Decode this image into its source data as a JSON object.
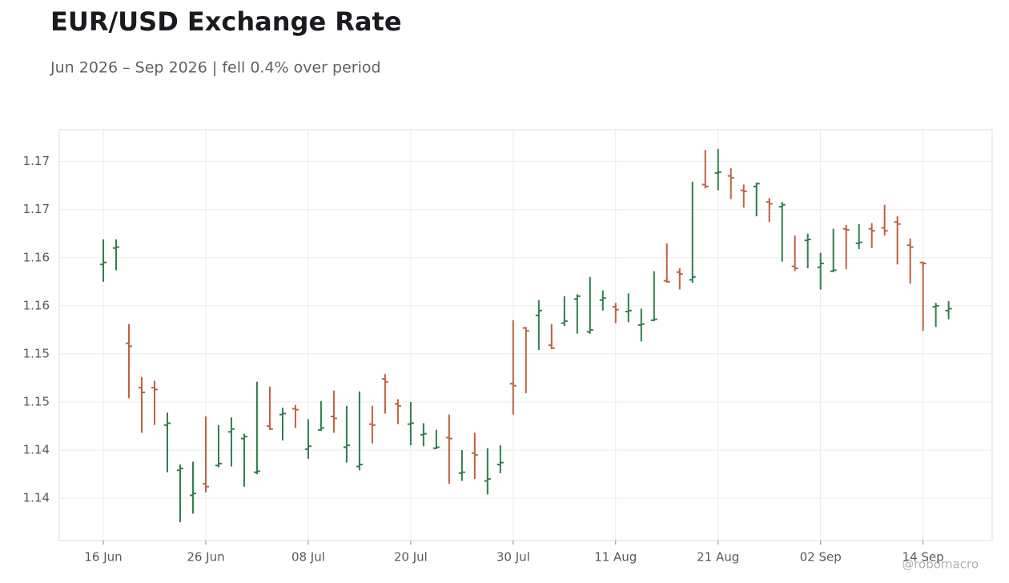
{
  "chart_data": {
    "type": "ohlc",
    "title": "EUR/USD Exchange Rate",
    "subtitle": "Jun 2026 – Sep 2026 | fell 0.4% over period",
    "watermark": "@robomacro",
    "up_color": "#2e7d4f",
    "down_color": "#c0603f",
    "grid": true,
    "categories": [
      "16 Jun",
      null,
      null,
      null,
      null,
      null,
      null,
      null,
      "26 Jun",
      null,
      null,
      null,
      null,
      null,
      null,
      null,
      "08 Jul",
      null,
      null,
      null,
      null,
      null,
      null,
      null,
      "20 Jul",
      null,
      null,
      null,
      null,
      null,
      null,
      null,
      "30 Jul",
      null,
      null,
      null,
      null,
      null,
      null,
      null,
      "11 Aug",
      null,
      null,
      null,
      null,
      null,
      null,
      null,
      "21 Aug",
      null,
      null,
      null,
      null,
      null,
      null,
      null,
      "02 Sep",
      null,
      null,
      null,
      null,
      null,
      null,
      null,
      "14 Sep",
      null,
      null
    ],
    "open": [
      1.1643,
      1.166,
      1.1561,
      1.1515,
      1.1515,
      1.1476,
      1.1429,
      1.1403,
      1.1415,
      1.1434,
      1.1469,
      1.1462,
      1.1427,
      1.1475,
      1.1487,
      1.1493,
      1.1451,
      1.1471,
      1.1485,
      1.1453,
      1.1433,
      1.1477,
      1.1524,
      1.1498,
      1.1477,
      1.1466,
      1.1452,
      1.1463,
      1.1426,
      1.1447,
      1.1418,
      1.1435,
      1.1519,
      1.1577,
      1.159,
      1.1559,
      1.1582,
      1.1607,
      1.1573,
      1.1606,
      1.1599,
      1.1594,
      1.158,
      1.1585,
      1.1626,
      1.1635,
      1.1627,
      1.1726,
      1.1738,
      1.1735,
      1.172,
      1.1724,
      1.1708,
      1.1703,
      1.1641,
      1.1668,
      1.164,
      1.1636,
      1.168,
      1.1665,
      1.168,
      1.1681,
      1.1687,
      1.1663,
      1.1645,
      1.1599,
      1.1595
    ],
    "high": [
      1.1669,
      1.1669,
      1.1581,
      1.1526,
      1.1522,
      1.1489,
      1.1435,
      1.1438,
      1.1485,
      1.1476,
      1.1484,
      1.1467,
      1.1521,
      1.1516,
      1.1494,
      1.1497,
      1.1482,
      1.1501,
      1.1512,
      1.1496,
      1.1511,
      1.1496,
      1.1529,
      1.1503,
      1.15,
      1.1478,
      1.1471,
      1.1487,
      1.145,
      1.1468,
      1.1452,
      1.1455,
      1.1585,
      1.1578,
      1.1606,
      1.1581,
      1.161,
      1.1612,
      1.163,
      1.1616,
      1.1603,
      1.1613,
      1.1597,
      1.1636,
      1.1665,
      1.1639,
      1.1729,
      1.1762,
      1.1763,
      1.1743,
      1.1726,
      1.1728,
      1.1712,
      1.1708,
      1.1673,
      1.1675,
      1.1655,
      1.168,
      1.1684,
      1.1685,
      1.1686,
      1.1705,
      1.1693,
      1.167,
      1.1646,
      1.1603,
      1.1605
    ],
    "low": [
      1.1625,
      1.1637,
      1.1504,
      1.1468,
      1.1476,
      1.1427,
      1.1375,
      1.1384,
      1.1406,
      1.1432,
      1.1433,
      1.1412,
      1.1425,
      1.1471,
      1.146,
      1.1473,
      1.1441,
      1.147,
      1.1468,
      1.1437,
      1.1429,
      1.1457,
      1.1488,
      1.1477,
      1.1455,
      1.1454,
      1.1451,
      1.1415,
      1.1418,
      1.142,
      1.1404,
      1.1426,
      1.1487,
      1.1509,
      1.1554,
      1.1555,
      1.1579,
      1.1571,
      1.1571,
      1.1595,
      1.1582,
      1.1583,
      1.1563,
      1.1584,
      1.1624,
      1.1617,
      1.1624,
      1.1722,
      1.172,
      1.1711,
      1.1702,
      1.1693,
      1.1687,
      1.1646,
      1.1636,
      1.1639,
      1.1617,
      1.1635,
      1.1638,
      1.1659,
      1.166,
      1.1673,
      1.1643,
      1.1623,
      1.1574,
      1.1578,
      1.1586
    ],
    "close": [
      1.1645,
      1.1661,
      1.1558,
      1.151,
      1.1513,
      1.1478,
      1.1431,
      1.1405,
      1.1412,
      1.1436,
      1.1472,
      1.1464,
      1.1428,
      1.1472,
      1.1488,
      1.1492,
      1.1454,
      1.1473,
      1.1483,
      1.1455,
      1.1435,
      1.1476,
      1.1521,
      1.1496,
      1.1478,
      1.1467,
      1.1453,
      1.1462,
      1.1427,
      1.1445,
      1.142,
      1.1437,
      1.1517,
      1.1574,
      1.1595,
      1.1556,
      1.1584,
      1.161,
      1.1575,
      1.1608,
      1.1596,
      1.1595,
      1.1581,
      1.1586,
      1.1625,
      1.1633,
      1.163,
      1.1724,
      1.1739,
      1.1733,
      1.1719,
      1.1727,
      1.1706,
      1.1705,
      1.1639,
      1.1669,
      1.1644,
      1.1637,
      1.1679,
      1.1666,
      1.1678,
      1.1678,
      1.1685,
      1.1661,
      1.1644,
      1.16,
      1.1597
    ],
    "ylim": [
      1.1356,
      1.1783
    ],
    "yticks": [
      {
        "value": 1.14,
        "label": "1.14"
      },
      {
        "value": 1.145,
        "label": "1.14"
      },
      {
        "value": 1.15,
        "label": "1.15"
      },
      {
        "value": 1.155,
        "label": "1.15"
      },
      {
        "value": 1.16,
        "label": "1.16"
      },
      {
        "value": 1.165,
        "label": "1.16"
      },
      {
        "value": 1.17,
        "label": "1.17"
      },
      {
        "value": 1.175,
        "label": "1.17"
      }
    ]
  }
}
